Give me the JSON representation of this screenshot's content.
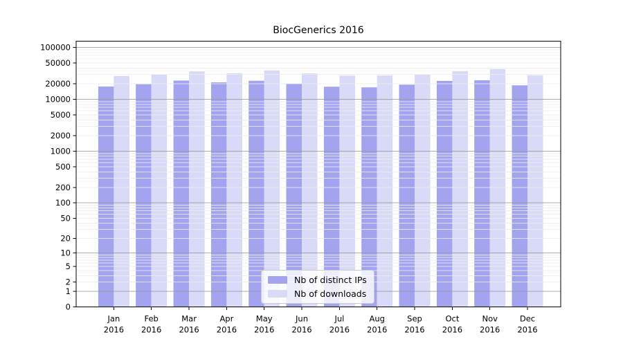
{
  "chart_data": {
    "type": "bar",
    "title": "BiocGenerics 2016",
    "categories": [
      "Jan",
      "Feb",
      "Mar",
      "Apr",
      "May",
      "Jun",
      "Jul",
      "Aug",
      "Sep",
      "Oct",
      "Nov",
      "Dec"
    ],
    "category_year": "2016",
    "series": [
      {
        "name": "Nb of distinct IPs",
        "color": "#a3a3ef",
        "values": [
          17600,
          19500,
          23000,
          21200,
          22800,
          20000,
          17500,
          17000,
          19200,
          22600,
          23300,
          18600
        ]
      },
      {
        "name": "Nb of downloads",
        "color": "#d9d9f8",
        "values": [
          28200,
          29700,
          34600,
          31900,
          36000,
          31600,
          28500,
          28700,
          30000,
          35000,
          38300,
          29100
        ]
      }
    ],
    "yticks": [
      0,
      1,
      2,
      5,
      10,
      20,
      50,
      100,
      200,
      500,
      1000,
      2000,
      5000,
      10000,
      20000,
      50000,
      100000
    ],
    "yscale": "log10(1+x)",
    "ylim": [
      0,
      100000
    ],
    "xlabel": "",
    "ylabel": "",
    "grid": {
      "minor_color": "#ececec",
      "major_color": "#969696",
      "major_lines_at": [
        1,
        10,
        100,
        1000,
        10000,
        100000
      ]
    },
    "legend_position": "lower center",
    "axis_color": "#000000"
  }
}
